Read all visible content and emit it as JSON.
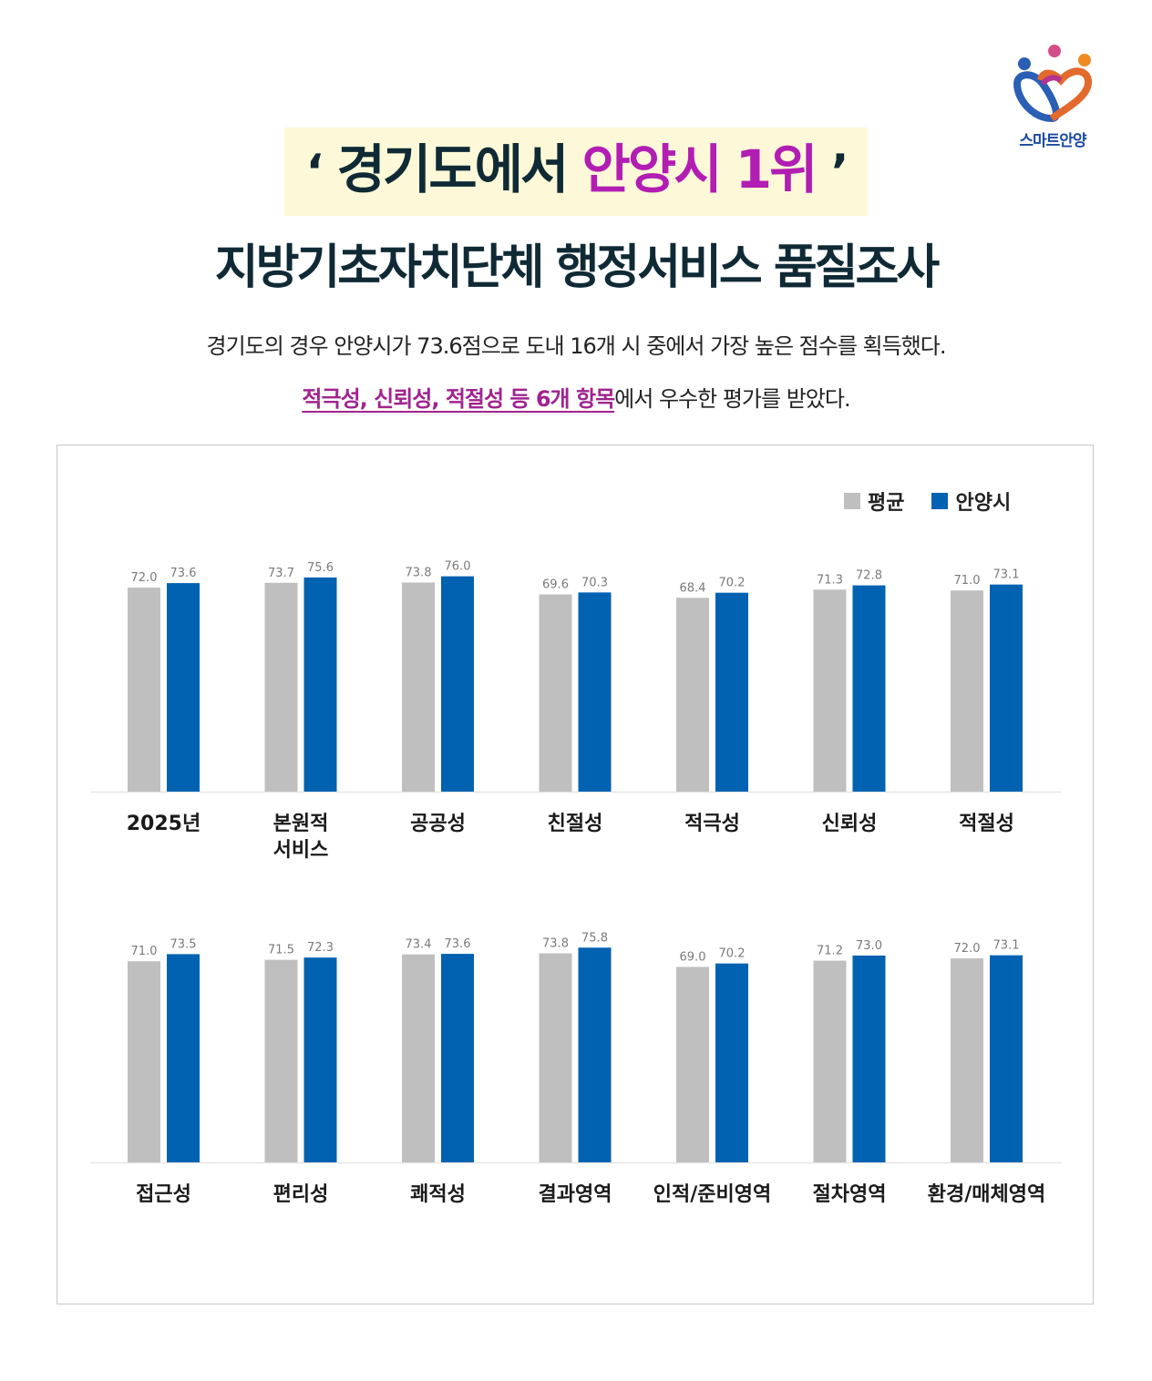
{
  "logo": {
    "text": "스마트안양"
  },
  "headline": {
    "open_quote": "‘",
    "prefix": "경기도에서 ",
    "accent": "안양시 1위",
    "close_quote": "’"
  },
  "subtitle": "지방기초자치단체 행정서비스 품질조사",
  "description": {
    "line1": "경기도의 경우 안양시가 73.6점으로 도내 16개 시 중에서 가장 높은 점수를 획득했다.",
    "line2_highlight": "적극성, 신뢰성, 적절성 등 6개 항목",
    "line2_rest": "에서 우수한 평가를 받았다."
  },
  "colors": {
    "average": "#bfbfbf",
    "anyang": "#0062b1"
  },
  "legend": [
    {
      "name": "평균",
      "color": "#bfbfbf"
    },
    {
      "name": "안양시",
      "color": "#0062b1"
    }
  ],
  "chart_data": [
    {
      "type": "bar",
      "categories": [
        [
          "2025년"
        ],
        [
          "본원적",
          "서비스"
        ],
        [
          "공공성"
        ],
        [
          "친절성"
        ],
        [
          "적극성"
        ],
        [
          "신뢰성"
        ],
        [
          "적절성"
        ]
      ],
      "series": [
        {
          "name": "평균",
          "values": [
            72.0,
            73.7,
            73.8,
            69.6,
            68.4,
            71.3,
            71.0
          ]
        },
        {
          "name": "안양시",
          "values": [
            73.6,
            75.6,
            76.0,
            70.3,
            70.2,
            72.8,
            73.1
          ]
        }
      ],
      "legend_position": "top-right",
      "grid": false
    },
    {
      "type": "bar",
      "categories": [
        [
          "접근성"
        ],
        [
          "편리성"
        ],
        [
          "쾌적성"
        ],
        [
          "결과영역"
        ],
        [
          "인적/준비영역"
        ],
        [
          "절차영역"
        ],
        [
          "환경/매체영역"
        ]
      ],
      "series": [
        {
          "name": "평균",
          "values": [
            71.0,
            71.5,
            73.4,
            73.8,
            69.0,
            71.2,
            72.0
          ]
        },
        {
          "name": "안양시",
          "values": [
            73.5,
            72.3,
            73.6,
            75.8,
            70.2,
            73.0,
            73.1
          ]
        }
      ],
      "grid": false
    }
  ]
}
